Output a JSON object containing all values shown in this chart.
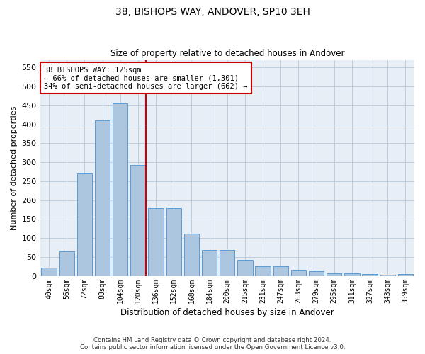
{
  "title1": "38, BISHOPS WAY, ANDOVER, SP10 3EH",
  "title2": "Size of property relative to detached houses in Andover",
  "xlabel": "Distribution of detached houses by size in Andover",
  "ylabel": "Number of detached properties",
  "categories": [
    "40sqm",
    "56sqm",
    "72sqm",
    "88sqm",
    "104sqm",
    "120sqm",
    "136sqm",
    "152sqm",
    "168sqm",
    "184sqm",
    "200sqm",
    "215sqm",
    "231sqm",
    "247sqm",
    "263sqm",
    "279sqm",
    "295sqm",
    "311sqm",
    "327sqm",
    "343sqm",
    "359sqm"
  ],
  "values": [
    22,
    65,
    270,
    410,
    455,
    293,
    178,
    178,
    112,
    68,
    68,
    43,
    25,
    25,
    14,
    12,
    7,
    7,
    5,
    3,
    5
  ],
  "bar_color": "#adc6e0",
  "bar_edge_color": "#5b9bd5",
  "bg_color": "#e8eef5",
  "vline_color": "#cc0000",
  "annotation_line1": "38 BISHOPS WAY: 125sqm",
  "annotation_line2": "← 66% of detached houses are smaller (1,301)",
  "annotation_line3": "34% of semi-detached houses are larger (662) →",
  "annotation_box_color": "#ffffff",
  "annotation_border_color": "#cc0000",
  "footer": "Contains HM Land Registry data © Crown copyright and database right 2024.\nContains public sector information licensed under the Open Government Licence v3.0.",
  "ylim": [
    0,
    570
  ],
  "yticks": [
    0,
    50,
    100,
    150,
    200,
    250,
    300,
    350,
    400,
    450,
    500,
    550
  ]
}
